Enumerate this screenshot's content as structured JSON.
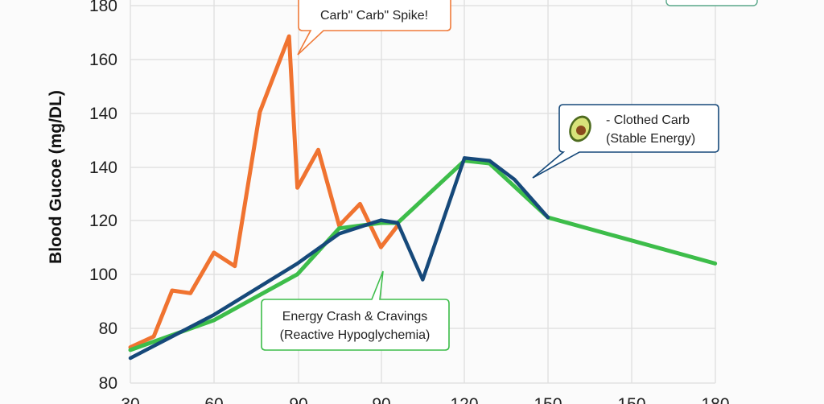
{
  "chart_data": {
    "type": "line",
    "ylabel": "Blood Gucoe (mg/DL)",
    "x_tick_labels": [
      "30",
      "60",
      "90",
      "90",
      "120",
      "150",
      "150",
      "180"
    ],
    "y_tick_labels": [
      "80",
      "80",
      "100",
      "120",
      "140",
      "140",
      "160",
      "180"
    ],
    "grid": true,
    "colors": {
      "orange": "#f07330",
      "blue": "#16497a",
      "green": "#3dbd4a",
      "grid": "#dddddd"
    },
    "series": [
      {
        "key": "orange",
        "values": [
          [
            0,
            73
          ],
          [
            0.28,
            77
          ],
          [
            0.5,
            94
          ],
          [
            0.72,
            93
          ],
          [
            1.0,
            108
          ],
          [
            1.25,
            103
          ],
          [
            1.55,
            160
          ],
          [
            1.9,
            188
          ],
          [
            2.0,
            132
          ],
          [
            2.25,
            146
          ],
          [
            2.5,
            118
          ],
          [
            2.75,
            126
          ],
          [
            3.0,
            110
          ],
          [
            3.2,
            118
          ]
        ]
      },
      {
        "key": "blue",
        "values": [
          [
            0,
            69
          ],
          [
            1.0,
            85
          ],
          [
            2.0,
            104
          ],
          [
            2.5,
            115
          ],
          [
            3.0,
            120
          ],
          [
            3.2,
            119
          ],
          [
            3.5,
            98
          ],
          [
            4.0,
            143
          ],
          [
            4.3,
            142
          ],
          [
            4.6,
            135
          ],
          [
            5.0,
            121
          ]
        ]
      },
      {
        "key": "green",
        "values": [
          [
            0,
            72
          ],
          [
            1.0,
            83
          ],
          [
            2.0,
            100
          ],
          [
            2.5,
            117
          ],
          [
            3.0,
            119
          ],
          [
            3.2,
            119
          ],
          [
            4.0,
            142
          ],
          [
            4.3,
            141
          ],
          [
            5.0,
            121
          ],
          [
            7.0,
            104
          ]
        ]
      }
    ],
    "annotations": {
      "spike": {
        "line1": "Carb\" Carb\" Spike!"
      },
      "clothed": {
        "line1": "- Clothed Carb",
        "line2": "(Stable Energy)",
        "icon": "avocado-icon"
      },
      "crash": {
        "line1": "Energy Crash & Cravings",
        "line2": "(Reactive Hypoglychemia)"
      }
    }
  }
}
